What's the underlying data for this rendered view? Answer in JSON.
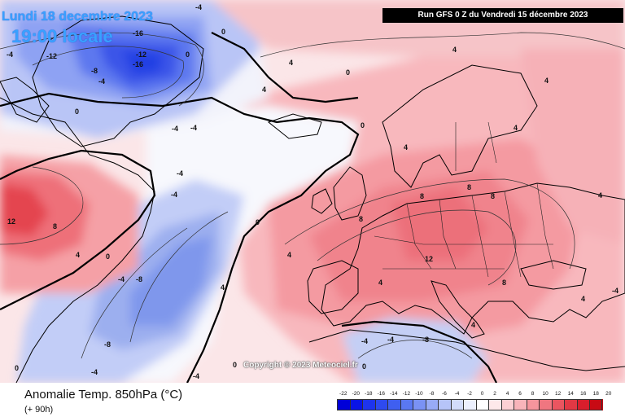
{
  "header": {
    "date_label": "Lundi 18 decembre 2023",
    "time_label": "19:00 locale",
    "run_label": "Run GFS 0 Z du Vendredi 15 décembre 2023"
  },
  "footer": {
    "title": "Anomalie Temp. 850hPa (°C)",
    "subtitle": "(+ 90h)",
    "copyright": "Copyright © 2023 Meteociel.fr"
  },
  "legend": {
    "ticks": [
      "-22",
      "-20",
      "-18",
      "-16",
      "-14",
      "-12",
      "-10",
      "-8",
      "-6",
      "-4",
      "-2",
      "0",
      "2",
      "4",
      "6",
      "8",
      "10",
      "12",
      "14",
      "16",
      "18",
      "20"
    ],
    "colors": [
      "#0000d8",
      "#0a14e6",
      "#1e34ee",
      "#2e4af0",
      "#3f5ff0",
      "#5a78f2",
      "#7a92f4",
      "#98abf6",
      "#b6c4f8",
      "#d2dcfa",
      "#ecf0fd",
      "#ffffff",
      "#fde8ea",
      "#fbd0d4",
      "#f8b4ba",
      "#f5959d",
      "#f07680",
      "#ea5560",
      "#e23844",
      "#d81e2c",
      "#c80a14"
    ]
  },
  "contour_labels": [
    {
      "text": "-16",
      "id": "a1"
    },
    {
      "text": "-12",
      "id": "a2"
    },
    {
      "text": "-16",
      "id": "a3"
    },
    {
      "text": "-12",
      "id": "a4"
    },
    {
      "text": "-8",
      "id": "a5"
    },
    {
      "text": "-4",
      "id": "a6"
    },
    {
      "text": "-4",
      "id": "a7"
    },
    {
      "text": "-4",
      "id": "a8"
    },
    {
      "text": "0",
      "id": "a9"
    },
    {
      "text": "0",
      "id": "a10"
    },
    {
      "text": "0",
      "id": "a11"
    },
    {
      "text": "-4",
      "id": "a12"
    },
    {
      "text": "4",
      "id": "a13"
    },
    {
      "text": "4",
      "id": "a14"
    },
    {
      "text": "4",
      "id": "a15"
    },
    {
      "text": "0",
      "id": "a16"
    },
    {
      "text": "-4",
      "id": "a17"
    },
    {
      "text": "-4",
      "id": "a18"
    },
    {
      "text": "-4",
      "id": "a19"
    },
    {
      "text": "0",
      "id": "a20"
    },
    {
      "text": "4",
      "id": "a21"
    },
    {
      "text": "8",
      "id": "a22"
    },
    {
      "text": "12",
      "id": "a23"
    },
    {
      "text": "4",
      "id": "a24"
    },
    {
      "text": "0",
      "id": "a25"
    },
    {
      "text": "-4",
      "id": "a26"
    },
    {
      "text": "-8",
      "id": "a27"
    },
    {
      "text": "-8",
      "id": "a28"
    },
    {
      "text": "-4",
      "id": "a29"
    },
    {
      "text": "0",
      "id": "a30"
    },
    {
      "text": "4",
      "id": "a31"
    },
    {
      "text": "8",
      "id": "a32"
    },
    {
      "text": "8",
      "id": "a33"
    },
    {
      "text": "8",
      "id": "a34"
    },
    {
      "text": "4",
      "id": "a35"
    },
    {
      "text": "4",
      "id": "a36"
    },
    {
      "text": "8",
      "id": "a37"
    },
    {
      "text": "12",
      "id": "a38"
    },
    {
      "text": "8",
      "id": "a39"
    },
    {
      "text": "4",
      "id": "a40"
    },
    {
      "text": "-4",
      "id": "a41"
    },
    {
      "text": "-4",
      "id": "a42"
    },
    {
      "text": "-8",
      "id": "a43"
    },
    {
      "text": "0",
      "id": "a44"
    },
    {
      "text": "4",
      "id": "a45"
    },
    {
      "text": "-4",
      "id": "a46"
    },
    {
      "text": "4",
      "id": "a47"
    },
    {
      "text": "4",
      "id": "a48"
    },
    {
      "text": "4",
      "id": "a49"
    },
    {
      "text": "-4",
      "id": "a50"
    },
    {
      "text": "0",
      "id": "a51"
    },
    {
      "text": "0",
      "id": "a52"
    }
  ]
}
